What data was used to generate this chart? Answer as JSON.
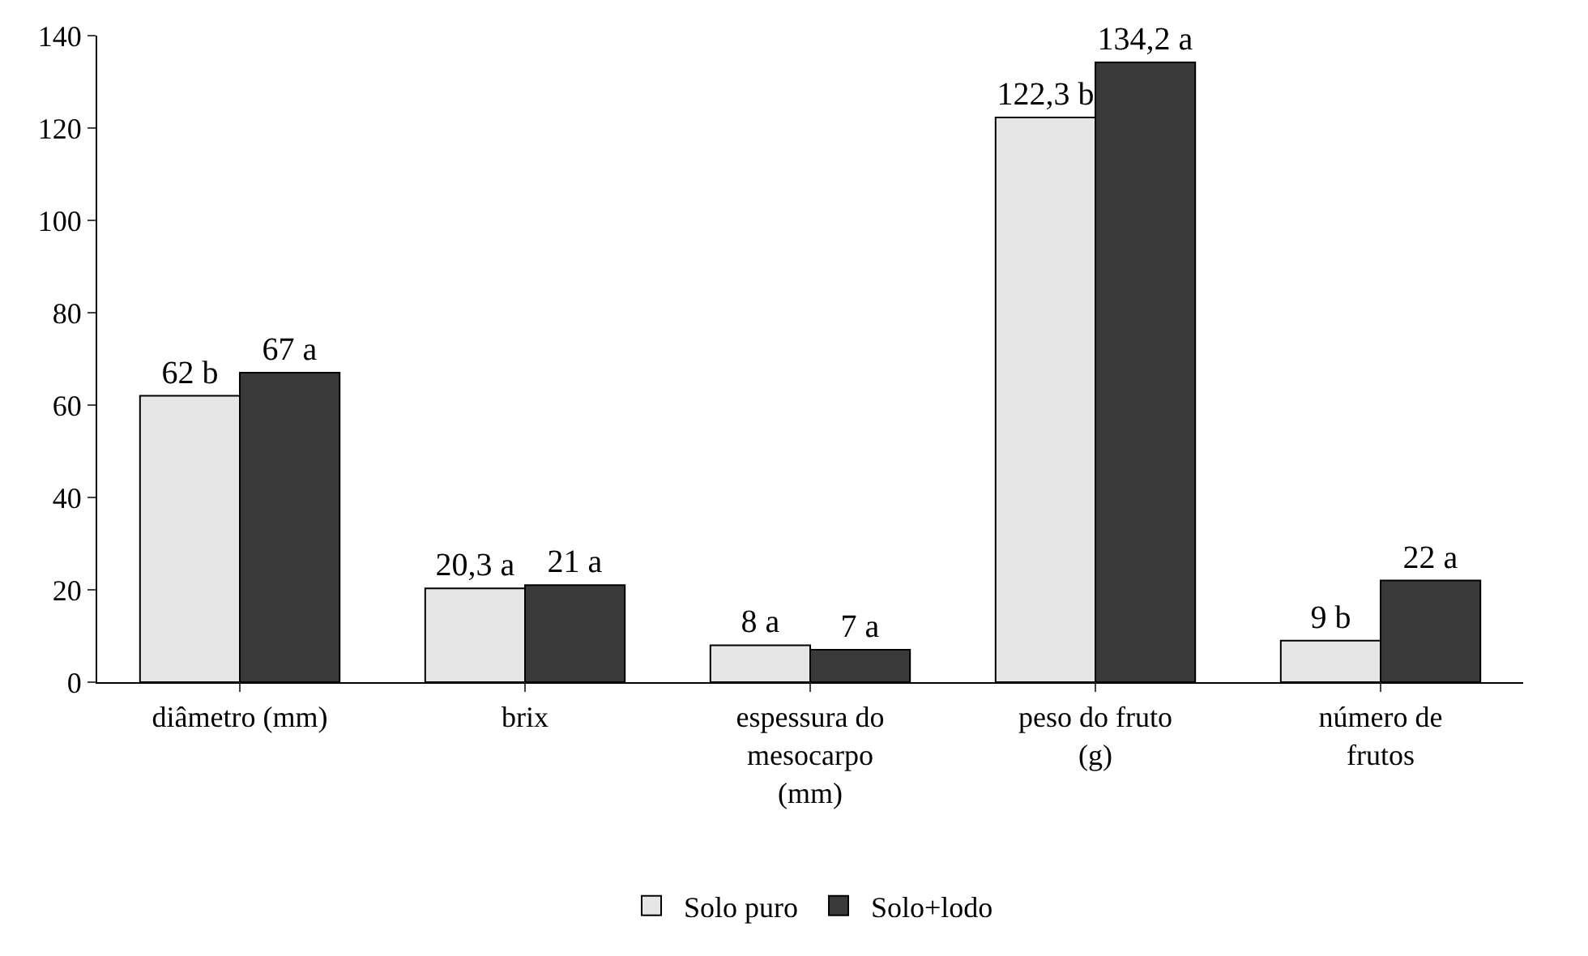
{
  "chart_data": {
    "type": "bar",
    "categories": [
      "diâmetro (mm)",
      "brix",
      "espessura do\nmesocarpo\n(mm)",
      "peso do fruto\n(g)",
      "número de\nfrutos"
    ],
    "series": [
      {
        "name": "Solo puro",
        "color": "#e6e6e6",
        "values": [
          62,
          20.3,
          8,
          122.3,
          9
        ],
        "value_labels": [
          "62 b",
          "20,3 a",
          "8 a",
          "122,3 b",
          "9 b"
        ]
      },
      {
        "name": "Solo+lodo",
        "color": "#3a3a3a",
        "values": [
          67,
          21,
          7,
          134.2,
          22
        ],
        "value_labels": [
          "67 a",
          "21 a",
          "7 a",
          "134,2 a",
          "22 a"
        ]
      }
    ],
    "ylim": [
      0,
      140
    ],
    "yticks": [
      0,
      20,
      40,
      60,
      80,
      100,
      120,
      140
    ],
    "legend": "bottom"
  }
}
